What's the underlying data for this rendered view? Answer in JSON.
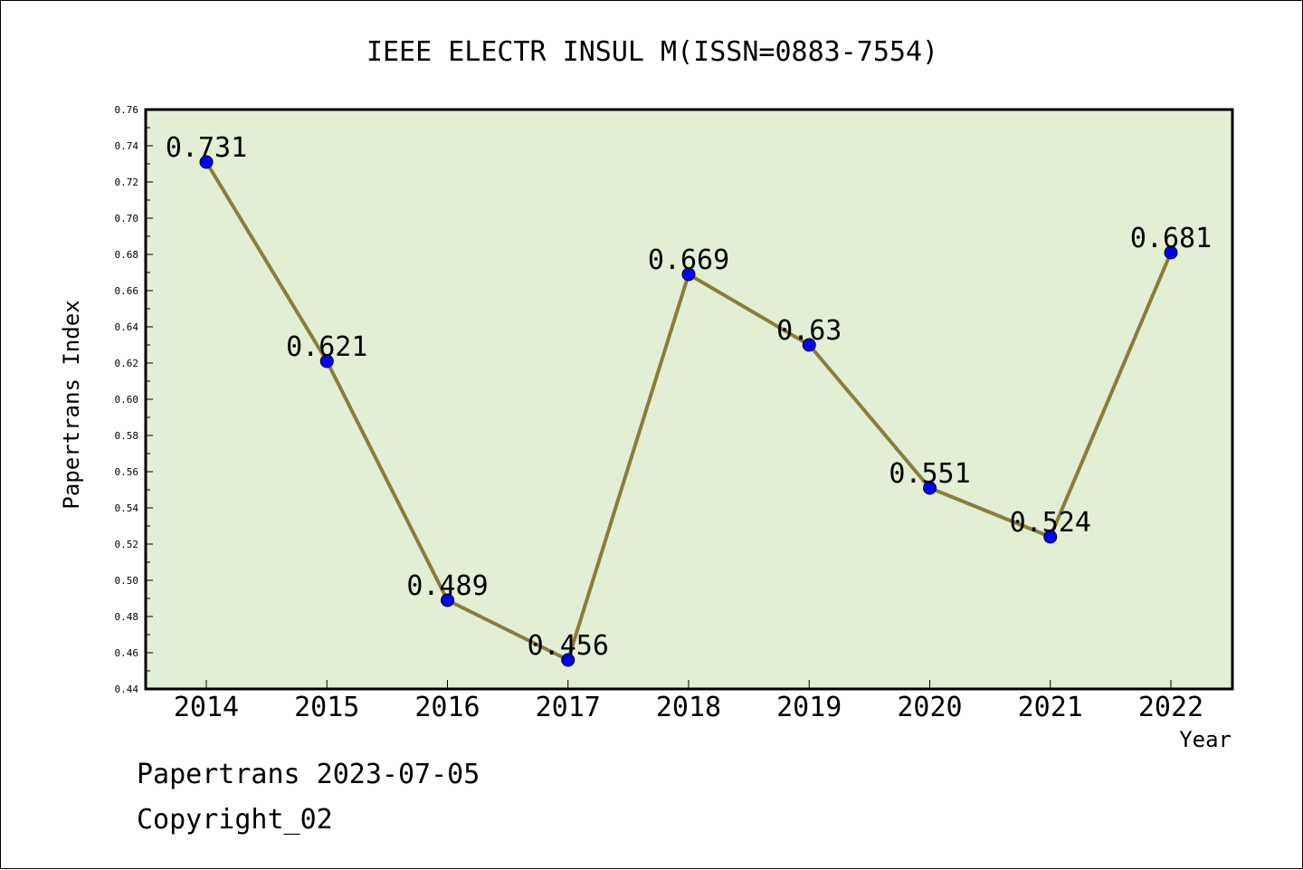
{
  "chart_data": {
    "type": "line",
    "title": "IEEE ELECTR INSUL M(ISSN=0883-7554)",
    "xlabel": "Year",
    "ylabel": "Papertrans Index",
    "categories": [
      "2014",
      "2015",
      "2016",
      "2017",
      "2018",
      "2019",
      "2020",
      "2021",
      "2022"
    ],
    "series": [
      {
        "values": [
          0.731,
          0.621,
          0.489,
          0.456,
          0.669,
          0.63,
          0.551,
          0.524,
          0.681
        ]
      }
    ],
    "data_labels": [
      "0.731",
      "0.621",
      "0.489",
      "0.456",
      "0.669",
      "0.63",
      "0.551",
      "0.524",
      "0.681"
    ],
    "ylim": [
      0.44,
      0.76
    ],
    "yticks": [
      "0.44",
      "0.46",
      "0.48",
      "0.50",
      "0.52",
      "0.54",
      "0.56",
      "0.58",
      "0.60",
      "0.62",
      "0.64",
      "0.66",
      "0.68",
      "0.70",
      "0.72",
      "0.74",
      "0.76"
    ],
    "grid": false,
    "legend": "none",
    "colors": {
      "plot_background": "#e2efd5",
      "line": "#8b7d3a",
      "marker": "#0000ff"
    }
  },
  "footer": {
    "line1": "Papertrans 2023-07-05",
    "line2": "Copyright_02"
  }
}
